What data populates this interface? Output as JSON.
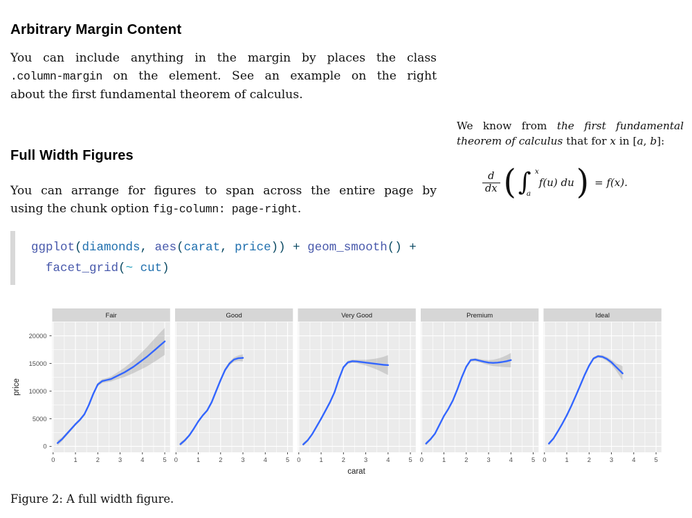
{
  "headings": {
    "h1": "Arbitrary Margin Content",
    "h2": "Full Width Figures"
  },
  "paragraphs": {
    "p1": [
      [
        {
          "s": "t",
          "v": "You can include anything in the margin by places the class"
        }
      ],
      [
        {
          "s": "c",
          "v": ".column-margin"
        },
        {
          "s": "t",
          "v": " on the element. See an example on the right"
        }
      ],
      [
        {
          "s": "t",
          "v": "about the first fundamental theorem of calculus."
        }
      ]
    ],
    "p2": [
      [
        {
          "s": "t",
          "v": "You can arrange for figures to span across the entire page by"
        }
      ],
      [
        {
          "s": "t",
          "v": "using the chunk option "
        },
        {
          "s": "c",
          "v": "fig-column: page-right"
        },
        {
          "s": "t",
          "v": "."
        }
      ]
    ]
  },
  "margin_note": {
    "lines": [
      [
        {
          "s": "t",
          "v": "We know from "
        },
        {
          "s": "em",
          "v": "the first fundamental"
        }
      ],
      [
        {
          "s": "em",
          "v": "theorem of calculus"
        },
        {
          "s": "t",
          "v": " that for "
        },
        {
          "s": "m",
          "v": "x"
        },
        {
          "s": "t",
          "v": " in ["
        },
        {
          "s": "m",
          "v": "a"
        },
        {
          "s": "t",
          "v": ", "
        },
        {
          "s": "m",
          "v": "b"
        },
        {
          "s": "t",
          "v": "]:"
        }
      ]
    ],
    "formula": {
      "frac_num": "d",
      "frac_den": "dx",
      "lparen": "(",
      "integral": "∫",
      "int_sup": "x",
      "int_sub": "a",
      "integrand": "f(u) du",
      "rparen": ")",
      "rhs": "= f(x)."
    }
  },
  "code_block": {
    "colors": {
      "fu": "#4758AB",
      "id": "#1F6FAE",
      "pu": "#0B4A63",
      "op": "#0B4A63",
      "sc": "#25A0BE"
    },
    "lines": [
      [
        {
          "s": "fu",
          "v": "ggplot"
        },
        {
          "s": "pu",
          "v": "("
        },
        {
          "s": "id",
          "v": "diamonds"
        },
        {
          "s": "pu",
          "v": ", "
        },
        {
          "s": "fu",
          "v": "aes"
        },
        {
          "s": "pu",
          "v": "("
        },
        {
          "s": "id",
          "v": "carat"
        },
        {
          "s": "pu",
          "v": ", "
        },
        {
          "s": "id",
          "v": "price"
        },
        {
          "s": "pu",
          "v": ")) "
        },
        {
          "s": "op",
          "v": "+"
        },
        {
          "s": "pu",
          "v": " "
        },
        {
          "s": "fu",
          "v": "geom_smooth"
        },
        {
          "s": "pu",
          "v": "() "
        },
        {
          "s": "op",
          "v": "+"
        }
      ],
      [
        {
          "s": "pu",
          "v": "  "
        },
        {
          "s": "fu",
          "v": "facet_grid"
        },
        {
          "s": "pu",
          "v": "("
        },
        {
          "s": "sc",
          "v": "~"
        },
        {
          "s": "pu",
          "v": " "
        },
        {
          "s": "id",
          "v": "cut"
        },
        {
          "s": "pu",
          "v": ")"
        }
      ]
    ]
  },
  "caption": "Figure 2: A full width figure.",
  "chart_data": {
    "type": "line",
    "title": "",
    "xlabel": "carat",
    "ylabel": "price",
    "x_ticks": [
      0,
      1,
      2,
      3,
      4,
      5
    ],
    "y_ticks": [
      0,
      5000,
      10000,
      15000,
      20000
    ],
    "xlim": [
      -0.04,
      5.24
    ],
    "ylim": [
      -1075,
      22575
    ],
    "grid": true,
    "legend": "none",
    "line_color": "#3366FF",
    "band_color": "#8f8f8f",
    "panel_bg": "#EBEBEB",
    "strip_bg": "#D6D6D6",
    "facets": [
      {
        "label": "Fair",
        "x": [
          0.2,
          0.4,
          0.6,
          0.8,
          1.0,
          1.2,
          1.4,
          1.6,
          1.8,
          2.0,
          2.2,
          2.4,
          2.6,
          2.8,
          3.0,
          3.2,
          3.4,
          3.6,
          3.8,
          4.0,
          4.2,
          4.4,
          4.6,
          4.8,
          5.0
        ],
        "y": [
          600,
          1300,
          2200,
          3100,
          4000,
          4800,
          5800,
          7500,
          9500,
          11200,
          11800,
          12000,
          12200,
          12600,
          13000,
          13400,
          13900,
          14400,
          15000,
          15600,
          16200,
          16900,
          17600,
          18300,
          19000
        ],
        "lo": [
          150,
          950,
          1900,
          2820,
          3740,
          4540,
          5520,
          7200,
          9180,
          10870,
          11450,
          11620,
          11750,
          12050,
          12300,
          12550,
          12900,
          13250,
          13650,
          14050,
          14450,
          14950,
          15450,
          16000,
          16550
        ],
        "hi": [
          1050,
          1650,
          2500,
          3380,
          4260,
          5060,
          6080,
          7800,
          9820,
          11530,
          12150,
          12380,
          12650,
          13150,
          13700,
          14250,
          14900,
          15550,
          16350,
          17150,
          17950,
          18850,
          19750,
          20600,
          21450
        ]
      },
      {
        "label": "Good",
        "x": [
          0.2,
          0.4,
          0.6,
          0.8,
          1.0,
          1.2,
          1.4,
          1.6,
          1.8,
          2.0,
          2.2,
          2.4,
          2.6,
          2.8,
          3.0
        ],
        "y": [
          400,
          1100,
          2000,
          3200,
          4500,
          5600,
          6500,
          8000,
          10000,
          12000,
          13800,
          15000,
          15700,
          15950,
          16000
        ],
        "lo": [
          50,
          820,
          1750,
          2970,
          4280,
          5370,
          6250,
          7720,
          9700,
          11680,
          13460,
          14640,
          15300,
          15450,
          15350
        ],
        "hi": [
          750,
          1380,
          2250,
          3430,
          4720,
          5830,
          6750,
          8280,
          10300,
          12320,
          14140,
          15360,
          16100,
          16450,
          16650
        ]
      },
      {
        "label": "Very Good",
        "x": [
          0.2,
          0.4,
          0.6,
          0.8,
          1.0,
          1.2,
          1.4,
          1.6,
          1.8,
          2.0,
          2.2,
          2.4,
          2.6,
          2.8,
          3.0,
          3.2,
          3.4,
          3.6,
          3.8,
          4.0
        ],
        "y": [
          350,
          1100,
          2200,
          3600,
          5000,
          6500,
          8000,
          9800,
          12200,
          14300,
          15200,
          15400,
          15350,
          15250,
          15150,
          15050,
          14950,
          14850,
          14750,
          14700
        ],
        "lo": [
          50,
          850,
          1980,
          3400,
          4800,
          6300,
          7790,
          9570,
          11950,
          14030,
          14920,
          15100,
          15020,
          14850,
          14630,
          14350,
          14050,
          13700,
          13300,
          12900
        ],
        "hi": [
          650,
          1350,
          2420,
          3800,
          5200,
          6700,
          8210,
          10030,
          12450,
          14570,
          15480,
          15700,
          15680,
          15650,
          15670,
          15750,
          15850,
          16000,
          16200,
          16500
        ]
      },
      {
        "label": "Premium",
        "x": [
          0.2,
          0.4,
          0.6,
          0.8,
          1.0,
          1.2,
          1.4,
          1.6,
          1.8,
          2.0,
          2.2,
          2.4,
          2.6,
          2.8,
          3.0,
          3.2,
          3.4,
          3.6,
          3.8,
          4.0
        ],
        "y": [
          500,
          1300,
          2300,
          3900,
          5500,
          6800,
          8300,
          10300,
          12500,
          14400,
          15600,
          15700,
          15500,
          15300,
          15150,
          15100,
          15150,
          15250,
          15400,
          15600
        ],
        "lo": [
          200,
          1050,
          2080,
          3700,
          5310,
          6610,
          8100,
          10090,
          12270,
          14150,
          15340,
          15420,
          15190,
          14930,
          14700,
          14540,
          14450,
          14380,
          14330,
          14300
        ],
        "hi": [
          800,
          1550,
          2520,
          4100,
          5690,
          6990,
          8500,
          10510,
          12730,
          14650,
          15860,
          15980,
          15810,
          15670,
          15600,
          15660,
          15850,
          16120,
          16470,
          16900
        ]
      },
      {
        "label": "Ideal",
        "x": [
          0.2,
          0.4,
          0.6,
          0.8,
          1.0,
          1.2,
          1.4,
          1.6,
          1.8,
          2.0,
          2.2,
          2.4,
          2.6,
          2.8,
          3.0,
          3.2,
          3.4,
          3.5
        ],
        "y": [
          500,
          1400,
          2700,
          4100,
          5600,
          7300,
          9100,
          11000,
          12900,
          14600,
          15900,
          16300,
          16200,
          15800,
          15200,
          14400,
          13600,
          13200
        ],
        "lo": [
          220,
          1170,
          2500,
          3910,
          5420,
          7120,
          8910,
          10800,
          12680,
          14360,
          15650,
          16030,
          15900,
          15440,
          14730,
          13760,
          12500,
          11900
        ],
        "hi": [
          780,
          1630,
          2900,
          4290,
          5780,
          7480,
          9290,
          11200,
          13120,
          14840,
          16150,
          16570,
          16500,
          16160,
          15670,
          15040,
          14700,
          14500
        ]
      }
    ]
  }
}
